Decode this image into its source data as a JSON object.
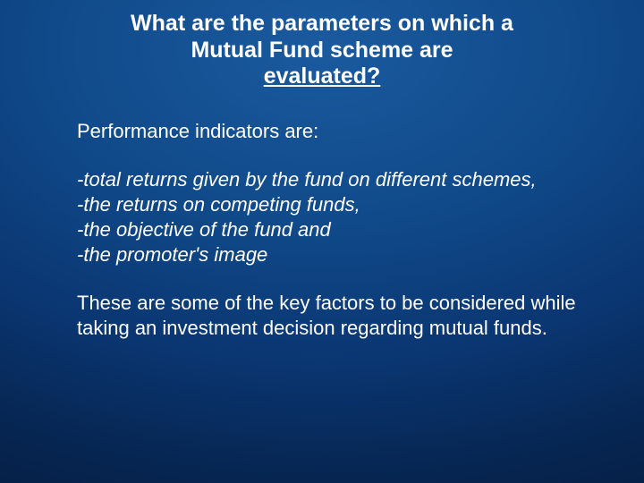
{
  "title": {
    "line1": "What are the parameters on which a",
    "line2": "Mutual Fund scheme are",
    "line3_underlined": "evaluated?"
  },
  "intro": "Performance indicators are:",
  "indicators": [
    "-total returns given by the fund on different schemes,",
    "-the returns on competing funds,",
    "-the objective of the fund and",
    "-the promoter's image"
  ],
  "closing": "These are some of the key factors to be considered while taking an investment decision regarding mutual funds.",
  "style": {
    "background_gradient": [
      "#1a5a9e",
      "#104a8a",
      "#0a3570",
      "#062550",
      "#041838"
    ],
    "text_color": "#ffffff",
    "title_fontsize": 25,
    "body_fontsize": 22,
    "font_family": "Verdana"
  }
}
